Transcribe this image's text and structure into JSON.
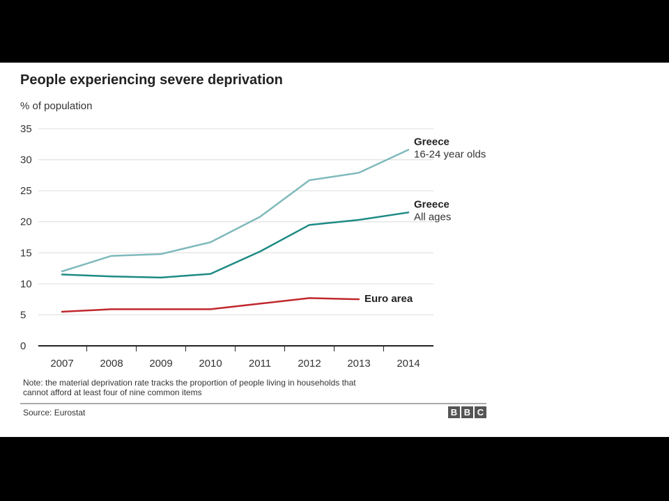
{
  "chart_data": {
    "type": "line",
    "title": "People experiencing severe deprivation",
    "ylabel": "% of population",
    "xlabel": "",
    "ylim": [
      0,
      35
    ],
    "yticks": [
      0,
      5,
      10,
      15,
      20,
      25,
      30,
      35
    ],
    "categories": [
      "2007",
      "2008",
      "2009",
      "2010",
      "2011",
      "2012",
      "2013",
      "2014"
    ],
    "grid": true,
    "legend": "direct labels at line ends",
    "series": [
      {
        "name": "Greece",
        "subname": "16-24 year olds",
        "color": "#7fb9bc",
        "values": [
          12.0,
          14.5,
          14.8,
          16.7,
          20.8,
          26.7,
          27.9,
          31.6
        ]
      },
      {
        "name": "Greece",
        "subname": "All ages",
        "color": "#1d8a84",
        "values": [
          11.5,
          11.2,
          11.0,
          11.6,
          15.2,
          19.5,
          20.3,
          21.5
        ]
      },
      {
        "name": "Euro area",
        "subname": "",
        "color": "#c0272d",
        "values": [
          5.5,
          5.9,
          5.9,
          5.9,
          6.8,
          7.7,
          7.5,
          null
        ]
      }
    ],
    "note": "Note: the material deprivation rate tracks the proportion of people living in households that cannot afford at least four of nine common items",
    "note_lines": [
      "Note: the material deprivation rate tracks the proportion of people living in households that",
      "cannot afford at least four of nine common items"
    ],
    "source": "Source: Eurostat",
    "logo": [
      "B",
      "B",
      "C"
    ]
  }
}
